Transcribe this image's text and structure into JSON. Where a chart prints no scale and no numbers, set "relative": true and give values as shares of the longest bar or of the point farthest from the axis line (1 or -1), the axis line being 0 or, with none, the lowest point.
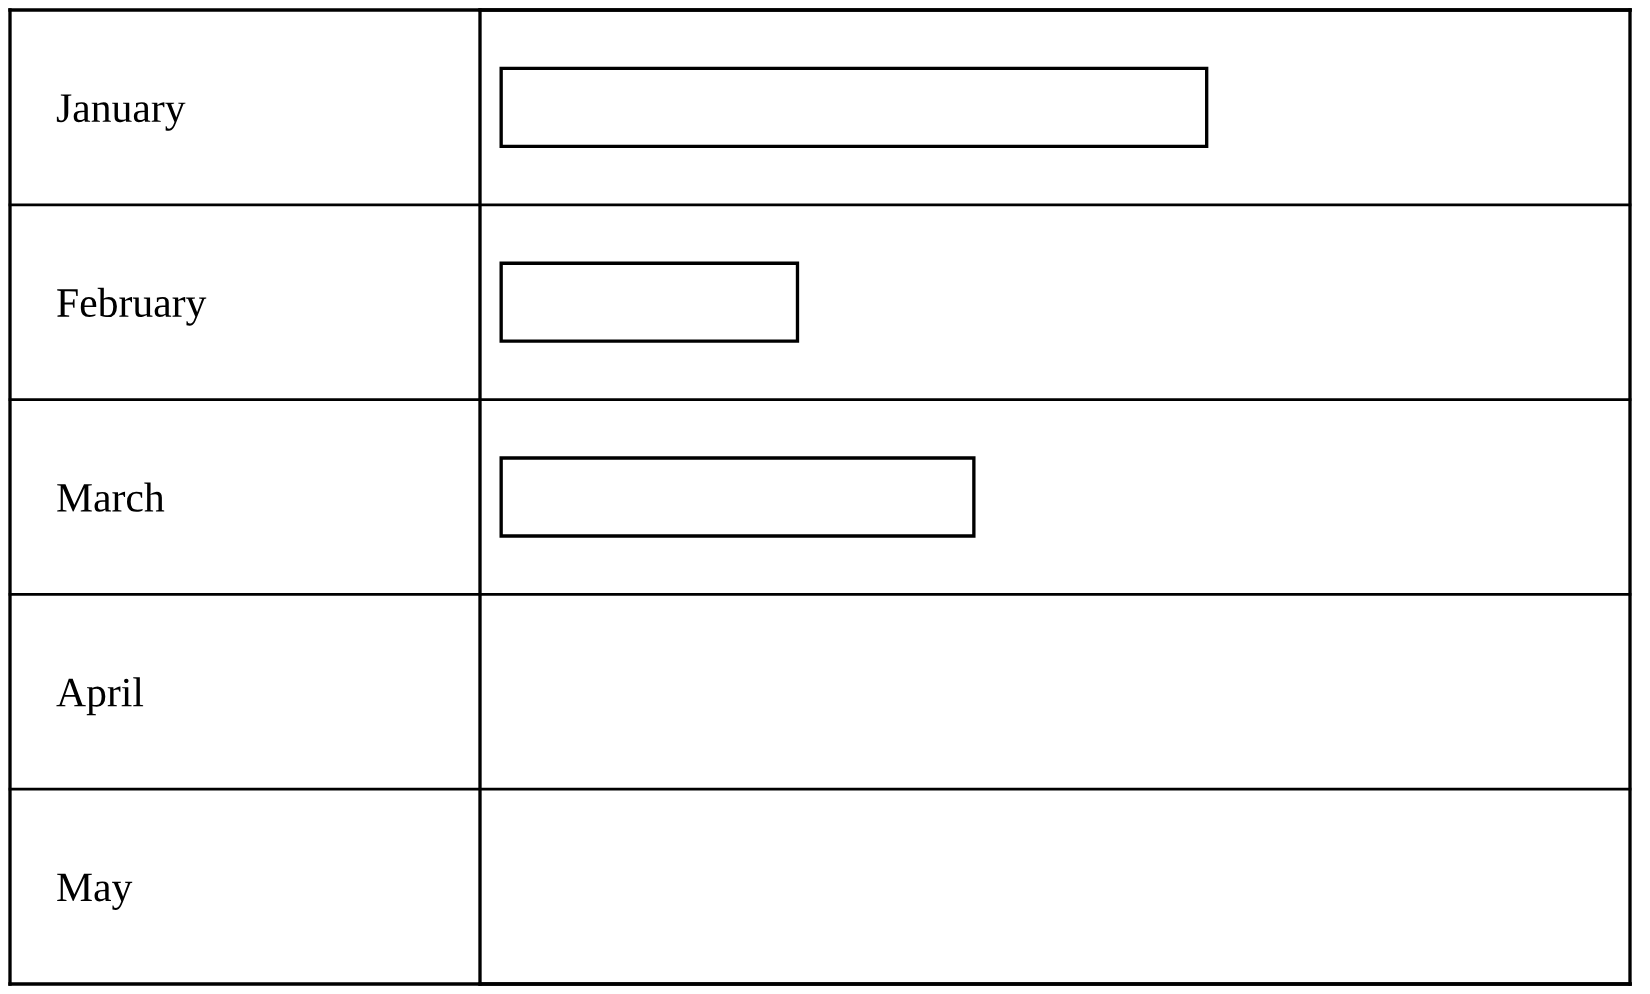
{
  "chart_data": {
    "type": "bar",
    "orientation": "horizontal",
    "relative": true,
    "categories": [
      "January",
      "February",
      "March",
      "April",
      "May"
    ],
    "values": [
      1,
      0.42,
      0.67,
      0,
      0
    ],
    "color": "#ffffff"
  }
}
